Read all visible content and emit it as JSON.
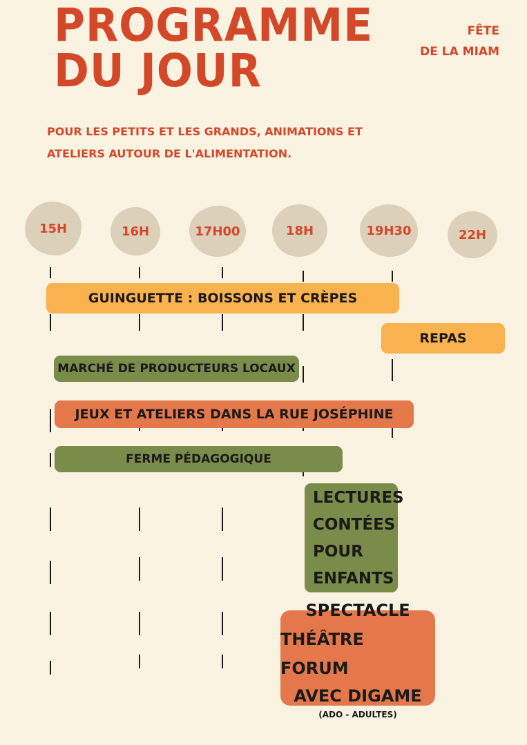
{
  "header": {
    "title_line1": "PROGRAMME",
    "title_line2": "DU JOUR",
    "event_line1": "FÊTE",
    "event_line2": "DE LA MIAM"
  },
  "intro": {
    "line1": "POUR LES PETITS ET LES GRANDS, ANIMATIONS ET",
    "line2": "ATELIERS AUTOUR DE L'ALIMENTATION."
  },
  "timeline": {
    "hours": [
      "15H",
      "16H",
      "17H00",
      "18H",
      "19H30",
      "22H"
    ]
  },
  "activities": {
    "guinguette": "GUINGUETTE : BOISSONS ET CRÈPES",
    "repas": "REPAS",
    "marche": "MARCHÉ DE PRODUCTEURS LOCAUX",
    "jeux": "JEUX  ET ATELIERS DANS LA RUE JOSÉPHINE",
    "ferme": "FERME PÉDAGOGIQUE",
    "lectures": [
      "LECTURES",
      "CONTÉES",
      "POUR",
      "ENFANTS"
    ],
    "spectacle": [
      "SPECTACLE",
      "THÉÂTRE FORUM",
      "AVEC  DIGAME"
    ],
    "spectacle_note": "(ADO - ADULTES)"
  },
  "colors": {
    "accent": "#d4482a",
    "background": "#fbf3e1",
    "hour_blob": "#ddd0ba",
    "yellow_bar": "#f9b24e",
    "green_bar": "#7a8c4a",
    "orange_bar": "#e4784b"
  }
}
